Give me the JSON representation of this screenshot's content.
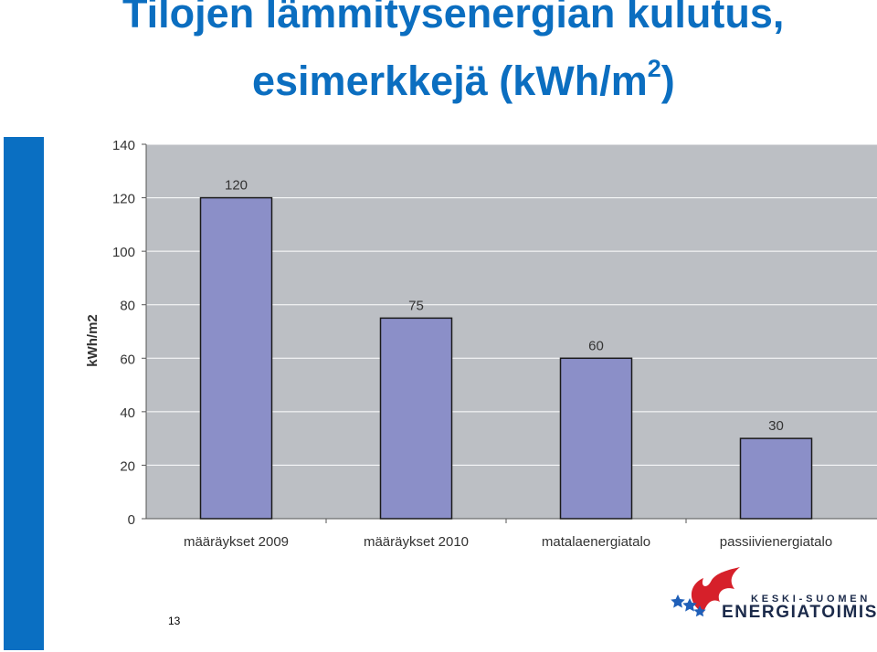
{
  "slide": {
    "title_line1": "Tilojen lämmitysenergian kulutus,",
    "title_line2_pre": "esimerkkejä (kWh/m",
    "title_line2_sup": "2",
    "title_line2_post": ")",
    "page_number": "13"
  },
  "logo": {
    "line1": "KESKI-SUOMEN",
    "line2": "ENERGIATOIMISTO",
    "colors": {
      "flame": "#d6202a",
      "stars": "#1f5fb8",
      "text": "#1b2a4a"
    }
  },
  "colors": {
    "title": "#0b6ec0",
    "side_bar": "#0a6fc2",
    "plot_bg": "#bcbfc4",
    "bar_fill": "#8b8fc8",
    "bar_stroke": "#1a1a1a",
    "gridline": "#ffffff"
  },
  "chart_data": {
    "type": "bar",
    "categories": [
      "määräykset 2009",
      "määräykset 2010",
      "matalaenergiatalo",
      "passiivienergiatalo"
    ],
    "values": [
      120,
      75,
      60,
      30
    ],
    "data_labels": [
      "120",
      "75",
      "60",
      "30"
    ],
    "title": "",
    "xlabel": "",
    "ylabel": "kWh/m2",
    "ylim": [
      0,
      140
    ],
    "yticks": [
      0,
      20,
      40,
      60,
      80,
      100,
      120,
      140
    ],
    "grid": true,
    "legend": "none"
  }
}
